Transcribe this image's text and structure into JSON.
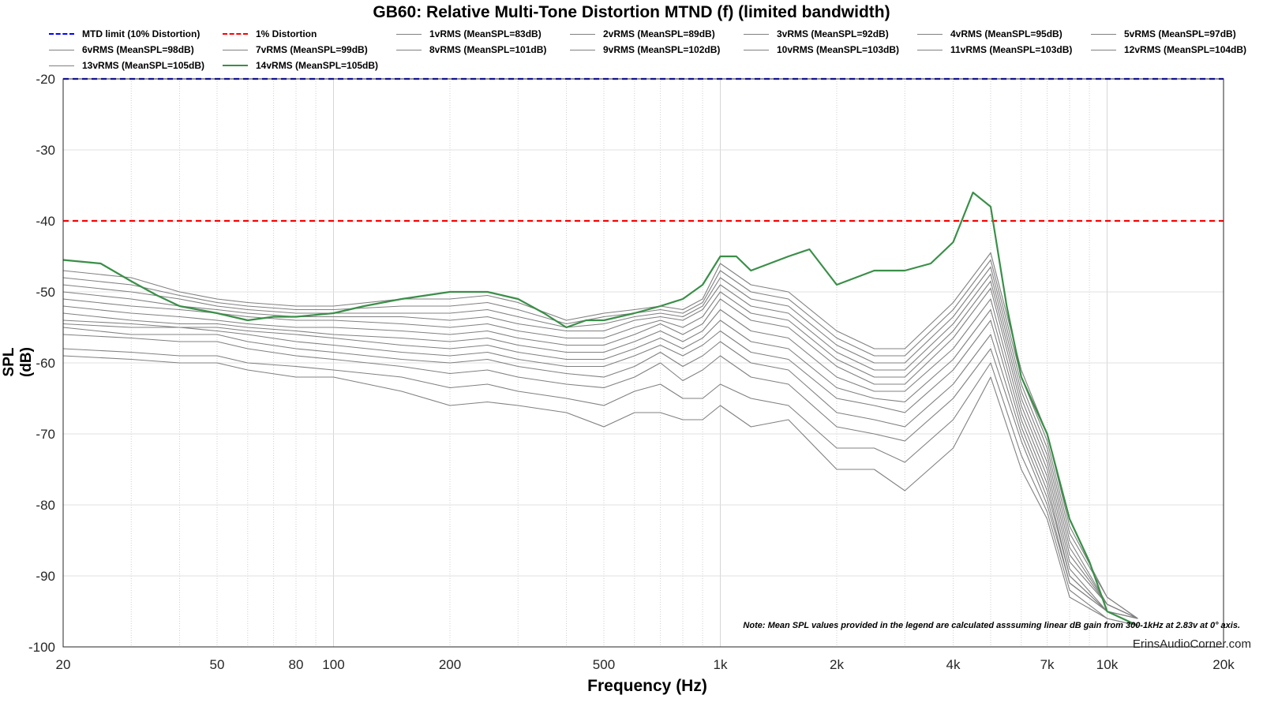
{
  "chart_data": {
    "type": "line",
    "title": "GB60: Relative Multi-Tone Distortion MTND (f) (limited bandwidth)",
    "xlabel": "Frequency (Hz)",
    "ylabel": "SPL (dB)",
    "x_scale": "log",
    "xlim": [
      20,
      20000
    ],
    "ylim": [
      -100,
      -20
    ],
    "x_ticks": [
      20,
      50,
      80,
      100,
      200,
      500,
      1000,
      2000,
      4000,
      7000,
      10000,
      20000
    ],
    "x_tick_labels": [
      "20",
      "50",
      "80",
      "100",
      "200",
      "500",
      "1k",
      "2k",
      "4k",
      "7k",
      "10k",
      "20k"
    ],
    "y_ticks": [
      -20,
      -30,
      -40,
      -50,
      -60,
      -70,
      -80,
      -90,
      -100
    ],
    "y_tick_labels": [
      "-20",
      "-30",
      "-40",
      "-50",
      "-60",
      "-70",
      "-80",
      "-90",
      "-100"
    ],
    "grid": true,
    "legend_position": "top",
    "reference_lines": [
      {
        "name": "MTD limit (10% Distortion)",
        "y": -20,
        "color": "#0000ff"
      },
      {
        "name": "1% Distortion",
        "y": -40,
        "color": "#ff0000"
      }
    ],
    "series": [
      {
        "name": "1vRMS (MeanSPL=83dB)",
        "color": "#808080",
        "x": [
          20,
          30,
          40,
          50,
          60,
          80,
          100,
          150,
          200,
          250,
          300,
          400,
          500,
          600,
          700,
          800,
          900,
          1000,
          1200,
          1500,
          2000,
          2500,
          3000,
          4000,
          5000,
          6000,
          7000,
          8000,
          10000,
          12000
        ],
        "y": [
          -59,
          -59.5,
          -60,
          -60,
          -61,
          -62,
          -62,
          -64,
          -66,
          -65.5,
          -66,
          -67,
          -69,
          -67,
          -67,
          -68,
          -68,
          -66,
          -69,
          -68,
          -75,
          -75,
          -78,
          -72,
          -62,
          -75,
          -82,
          -93,
          -96,
          -97
        ]
      },
      {
        "name": "2vRMS (MeanSPL=89dB)",
        "color": "#808080",
        "x": [
          20,
          30,
          40,
          50,
          60,
          80,
          100,
          150,
          200,
          250,
          300,
          400,
          500,
          600,
          700,
          800,
          900,
          1000,
          1200,
          1500,
          2000,
          2500,
          3000,
          4000,
          5000,
          6000,
          7000,
          8000,
          10000,
          12000
        ],
        "y": [
          -58,
          -58.5,
          -59,
          -59,
          -60,
          -60.5,
          -61,
          -62,
          -63.5,
          -63,
          -64,
          -65,
          -66,
          -64,
          -63,
          -65,
          -65,
          -63,
          -65,
          -66,
          -72,
          -72,
          -74,
          -68,
          -60,
          -73,
          -81,
          -92,
          -96,
          -97
        ]
      },
      {
        "name": "3vRMS (MeanSPL=92dB)",
        "color": "#808080",
        "x": [
          20,
          30,
          40,
          50,
          60,
          80,
          100,
          150,
          200,
          250,
          300,
          400,
          500,
          600,
          700,
          800,
          900,
          1000,
          1200,
          1500,
          2000,
          2500,
          3000,
          4000,
          5000,
          6000,
          7000,
          8000,
          10000,
          12000
        ],
        "y": [
          -56,
          -56.5,
          -57,
          -57,
          -58,
          -59,
          -59.5,
          -60.5,
          -61.5,
          -61,
          -62,
          -63,
          -63.5,
          -62,
          -60,
          -62.5,
          -61,
          -59,
          -62,
          -63,
          -69,
          -70,
          -71,
          -65,
          -58,
          -71,
          -80,
          -91,
          -95,
          -96
        ]
      },
      {
        "name": "4vRMS (MeanSPL=95dB)",
        "color": "#808080",
        "x": [
          20,
          30,
          40,
          50,
          60,
          80,
          100,
          150,
          200,
          250,
          300,
          400,
          500,
          600,
          700,
          800,
          900,
          1000,
          1200,
          1500,
          2000,
          2500,
          3000,
          4000,
          5000,
          6000,
          7000,
          8000,
          10000,
          12000
        ],
        "y": [
          -55,
          -56,
          -56,
          -56,
          -57,
          -58,
          -58.5,
          -59.5,
          -60,
          -59.5,
          -60.5,
          -61.5,
          -62,
          -60.5,
          -58.5,
          -60.5,
          -59,
          -57,
          -60,
          -61,
          -67,
          -68,
          -69,
          -63,
          -56,
          -70,
          -79,
          -91,
          -95,
          -96
        ]
      },
      {
        "name": "5vRMS (MeanSPL=97dB)",
        "color": "#808080",
        "x": [
          20,
          30,
          40,
          50,
          60,
          80,
          100,
          150,
          200,
          250,
          300,
          400,
          500,
          600,
          700,
          800,
          900,
          1000,
          1200,
          1500,
          2000,
          2500,
          3000,
          4000,
          5000,
          6000,
          7000,
          8000,
          10000,
          12000
        ],
        "y": [
          -54.5,
          -55,
          -55,
          -55.5,
          -56,
          -57,
          -57.5,
          -58.5,
          -59,
          -58.5,
          -59.5,
          -60.5,
          -60.5,
          -59,
          -57.5,
          -59,
          -57.5,
          -55.5,
          -58.5,
          -59.5,
          -65,
          -66,
          -67,
          -61,
          -54,
          -69,
          -78,
          -90,
          -95,
          -96
        ]
      },
      {
        "name": "6vRMS (MeanSPL=98dB)",
        "color": "#808080",
        "x": [
          20,
          30,
          40,
          50,
          60,
          80,
          100,
          150,
          200,
          250,
          300,
          400,
          500,
          600,
          700,
          800,
          900,
          1000,
          1200,
          1500,
          2000,
          2500,
          3000,
          4000,
          5000,
          6000,
          7000,
          8000,
          10000,
          12000
        ],
        "y": [
          -54,
          -54.5,
          -55,
          -55,
          -55.5,
          -56,
          -56.5,
          -57.5,
          -58,
          -57.5,
          -58.5,
          -59.5,
          -59.5,
          -58,
          -56.5,
          -58,
          -56.5,
          -54,
          -57,
          -58,
          -63.5,
          -65,
          -65.5,
          -59.5,
          -52.5,
          -68,
          -77,
          -90,
          -95,
          -96
        ]
      },
      {
        "name": "7vRMS (MeanSPL=99dB)",
        "color": "#808080",
        "x": [
          20,
          30,
          40,
          50,
          60,
          80,
          100,
          150,
          200,
          250,
          300,
          400,
          500,
          600,
          700,
          800,
          900,
          1000,
          1200,
          1500,
          2000,
          2500,
          3000,
          4000,
          5000,
          6000,
          7000,
          8000,
          10000,
          12000
        ],
        "y": [
          -53,
          -54,
          -54.5,
          -54.5,
          -55,
          -55.5,
          -56,
          -56.5,
          -57,
          -56.5,
          -57.5,
          -58.5,
          -58.5,
          -57,
          -55.5,
          -57,
          -55.5,
          -52.5,
          -55.5,
          -56.5,
          -62,
          -64,
          -64,
          -58,
          -51,
          -67,
          -76,
          -89,
          -95,
          -96
        ]
      },
      {
        "name": "8vRMS (MeanSPL=101dB)",
        "color": "#808080",
        "x": [
          20,
          30,
          40,
          50,
          60,
          80,
          100,
          150,
          200,
          250,
          300,
          400,
          500,
          600,
          700,
          800,
          900,
          1000,
          1200,
          1500,
          2000,
          2500,
          3000,
          4000,
          5000,
          6000,
          7000,
          8000,
          10000,
          12000
        ],
        "y": [
          -52,
          -53,
          -53.5,
          -54,
          -54.5,
          -55,
          -55,
          -55.5,
          -56,
          -55.5,
          -56.5,
          -57.5,
          -57.5,
          -56,
          -54.5,
          -56,
          -54.5,
          -51,
          -54,
          -55,
          -60.5,
          -63,
          -63,
          -56.5,
          -49.5,
          -66,
          -75,
          -88,
          -94,
          -96
        ]
      },
      {
        "name": "9vRMS (MeanSPL=102dB)",
        "color": "#808080",
        "x": [
          20,
          30,
          40,
          50,
          60,
          80,
          100,
          150,
          200,
          250,
          300,
          400,
          500,
          600,
          700,
          800,
          900,
          1000,
          1200,
          1500,
          2000,
          2500,
          3000,
          4000,
          5000,
          6000,
          7000,
          8000,
          10000,
          12000
        ],
        "y": [
          -51,
          -52,
          -52.5,
          -53,
          -53.5,
          -54,
          -54,
          -54.5,
          -55,
          -54.5,
          -55.5,
          -56.5,
          -56.5,
          -55,
          -54,
          -55,
          -53.5,
          -50,
          -53,
          -54,
          -59.5,
          -62,
          -62,
          -55.5,
          -48.5,
          -65,
          -74,
          -87,
          -94,
          -96
        ]
      },
      {
        "name": "10vRMS (MeanSPL=103dB)",
        "color": "#808080",
        "x": [
          20,
          30,
          40,
          50,
          60,
          80,
          100,
          150,
          200,
          250,
          300,
          400,
          500,
          600,
          700,
          800,
          900,
          1000,
          1200,
          1500,
          2000,
          2500,
          3000,
          4000,
          5000,
          6000,
          7000,
          8000,
          10000,
          12000
        ],
        "y": [
          -50,
          -51,
          -52,
          -52.5,
          -53,
          -53.5,
          -53.5,
          -53.5,
          -54,
          -53.5,
          -54.5,
          -55.5,
          -55.5,
          -54,
          -53.5,
          -54,
          -52.5,
          -49,
          -52,
          -53,
          -58.5,
          -61,
          -61,
          -54.5,
          -47.5,
          -64,
          -73,
          -86,
          -94,
          -96
        ]
      },
      {
        "name": "11vRMS (MeanSPL=103dB)",
        "color": "#808080",
        "x": [
          20,
          30,
          40,
          50,
          60,
          80,
          100,
          150,
          200,
          250,
          300,
          400,
          500,
          600,
          700,
          800,
          900,
          1000,
          1200,
          1500,
          2000,
          2500,
          3000,
          4000,
          5000,
          6000,
          7000,
          8000,
          10000,
          12000
        ],
        "y": [
          -49,
          -50,
          -51,
          -52,
          -52.5,
          -53,
          -53,
          -53,
          -53,
          -52.5,
          -53.5,
          -55,
          -54.5,
          -53.5,
          -53,
          -53.5,
          -52,
          -48,
          -51,
          -52,
          -57.5,
          -60,
          -60,
          -53.5,
          -46.5,
          -63,
          -72,
          -85,
          -94,
          -96
        ]
      },
      {
        "name": "12vRMS (MeanSPL=104dB)",
        "color": "#808080",
        "x": [
          20,
          30,
          40,
          50,
          60,
          80,
          100,
          150,
          200,
          250,
          300,
          400,
          500,
          600,
          700,
          800,
          900,
          1000,
          1200,
          1500,
          2000,
          2500,
          3000,
          4000,
          5000,
          6000,
          7000,
          8000,
          10000,
          12000
        ],
        "y": [
          -48,
          -49,
          -50.5,
          -51.5,
          -52,
          -52.5,
          -52.5,
          -52,
          -52,
          -51.5,
          -52.5,
          -54.5,
          -53.5,
          -53,
          -52.5,
          -53,
          -51.5,
          -47,
          -50,
          -51,
          -56.5,
          -59,
          -59,
          -52.5,
          -45.5,
          -62,
          -71,
          -84,
          -93,
          -96
        ]
      },
      {
        "name": "13vRMS (MeanSPL=105dB)",
        "color": "#808080",
        "x": [
          20,
          30,
          40,
          50,
          60,
          80,
          100,
          150,
          200,
          250,
          300,
          400,
          500,
          600,
          700,
          800,
          900,
          1000,
          1200,
          1500,
          2000,
          2500,
          3000,
          4000,
          5000,
          6000,
          7000,
          8000,
          10000,
          12000
        ],
        "y": [
          -47,
          -48,
          -50,
          -51,
          -51.5,
          -52,
          -52,
          -51,
          -51,
          -50.5,
          -51.5,
          -54,
          -53,
          -52.5,
          -52,
          -52.5,
          -51,
          -46,
          -49,
          -50,
          -55.5,
          -58,
          -58,
          -51.5,
          -44.5,
          -61,
          -70,
          -83,
          -93,
          -96
        ]
      },
      {
        "name": "14vRMS (MeanSPL=105dB)",
        "color": "#3a8f48",
        "x": [
          20,
          25,
          30,
          35,
          40,
          50,
          60,
          70,
          80,
          100,
          120,
          150,
          200,
          250,
          300,
          350,
          400,
          450,
          500,
          600,
          700,
          800,
          900,
          1000,
          1100,
          1200,
          1500,
          1700,
          2000,
          2500,
          3000,
          3500,
          4000,
          4500,
          5000,
          5500,
          6000,
          7000,
          8000,
          9000,
          10000,
          12000
        ],
        "y": [
          -45.5,
          -46,
          -48.5,
          -50.5,
          -52,
          -53,
          -54,
          -53.5,
          -53.5,
          -53,
          -52,
          -51,
          -50,
          -50,
          -51,
          -53,
          -55,
          -54,
          -54,
          -53,
          -52,
          -51,
          -49,
          -45,
          -45,
          -47,
          -45,
          -44,
          -49,
          -47,
          -47,
          -46,
          -43,
          -36,
          -38,
          -52,
          -62,
          -70,
          -82,
          -88,
          -95,
          -97
        ]
      }
    ]
  },
  "note": "Note: Mean SPL values provided in the legend are calculated asssuming linear dB gain from 300-1kHz at 2.83v at 0° axis.",
  "watermark": "ErinsAudioCorner.com"
}
